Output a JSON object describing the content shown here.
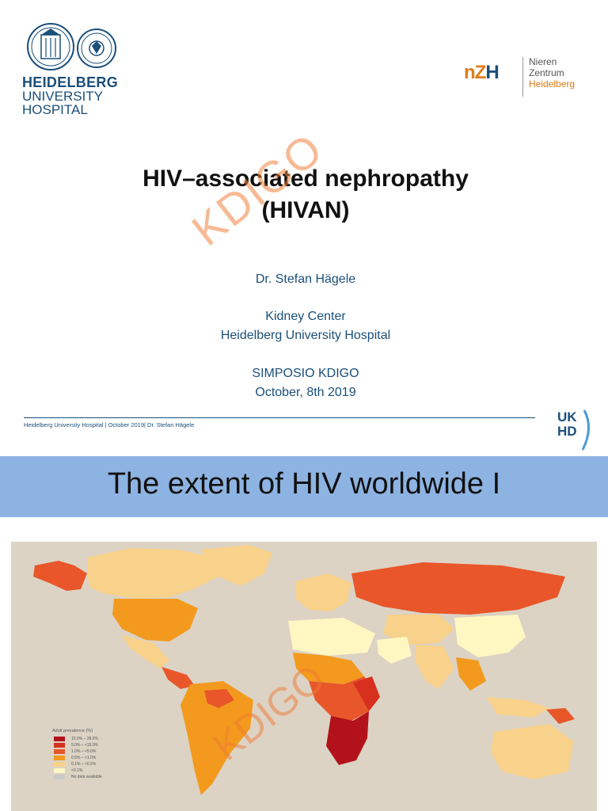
{
  "slide1": {
    "logo_left": {
      "line1": "HEIDELBERG",
      "line2": "UNIVERSITY",
      "line3": "HOSPITAL"
    },
    "logo_right": {
      "mark_a": "nZ",
      "mark_b": "H",
      "line1": "Nieren",
      "line2": "Zentrum",
      "line3": "Heidelberg"
    },
    "title_line1": "HIV–associated nephropathy",
    "title_line2": "(HIVAN)",
    "watermark": "KDIGO",
    "author": "Dr. Stefan Hägele",
    "affiliation_line1": "Kidney Center",
    "affiliation_line2": "Heidelberg University Hospital",
    "event_line1": "SIMPOSIO KDIGO",
    "event_line2": "October, 8th 2019",
    "footer": "Heidelberg University Hospital | October 2019|  Dr. Stefan Hägele",
    "ukhd_line1": "UK",
    "ukhd_line2": "HD"
  },
  "slide2": {
    "title": "The extent of HIV worldwide I",
    "watermark": "KDIGO",
    "legend": {
      "title": "Adult prevalence (%)",
      "items": [
        {
          "label": "15.0%  –  28.0%",
          "color": "#b3121b"
        },
        {
          "label": "5.0%  – <15.0%",
          "color": "#d7301f"
        },
        {
          "label": "1.0%  –  <5.0%",
          "color": "#e8562a"
        },
        {
          "label": "0.5%  –  <1.0%",
          "color": "#f39a1e"
        },
        {
          "label": "0.1%  –  <0.5%",
          "color": "#f8d18a"
        },
        {
          "label": "<0.1%",
          "color": "#fff7c2"
        },
        {
          "label": "No data available",
          "color": "#c9c9c9"
        }
      ]
    }
  }
}
